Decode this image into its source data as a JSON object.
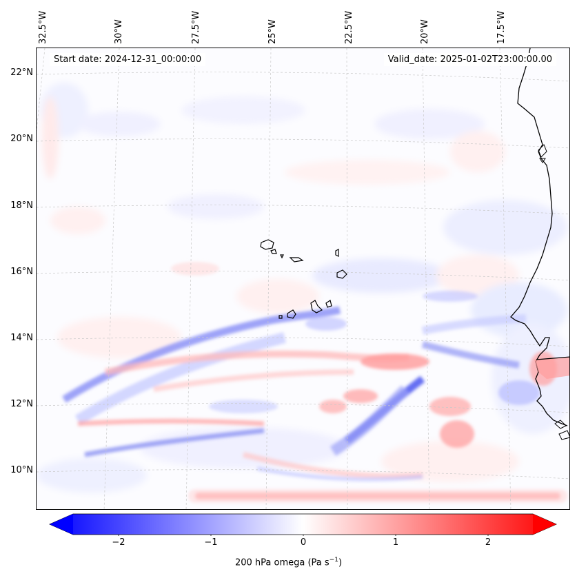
{
  "map": {
    "start_date": "Start date: 2024-12-31_00:00:00",
    "valid_date": "Valid_date: 2025-01-02T23:00:00.00",
    "lon_labels": [
      "32.5°W",
      "30°W",
      "27.5°W",
      "25°W",
      "22.5°W",
      "20°W",
      "17.5°W"
    ],
    "lat_labels": [
      "22°N",
      "20°N",
      "18°N",
      "16°N",
      "14°N",
      "12°N",
      "10°N"
    ]
  },
  "colorbar": {
    "title": "200 hPa omega (Pa s",
    "title_sup": "−1",
    "title_close": ")",
    "ticks": [
      "−2",
      "−1",
      "0",
      "1",
      "2"
    ],
    "vmin": -2.6,
    "vmax": 2.6,
    "colors": {
      "negative": "#0000ff",
      "neutral": "#ffffff",
      "positive": "#ff0000"
    }
  }
}
